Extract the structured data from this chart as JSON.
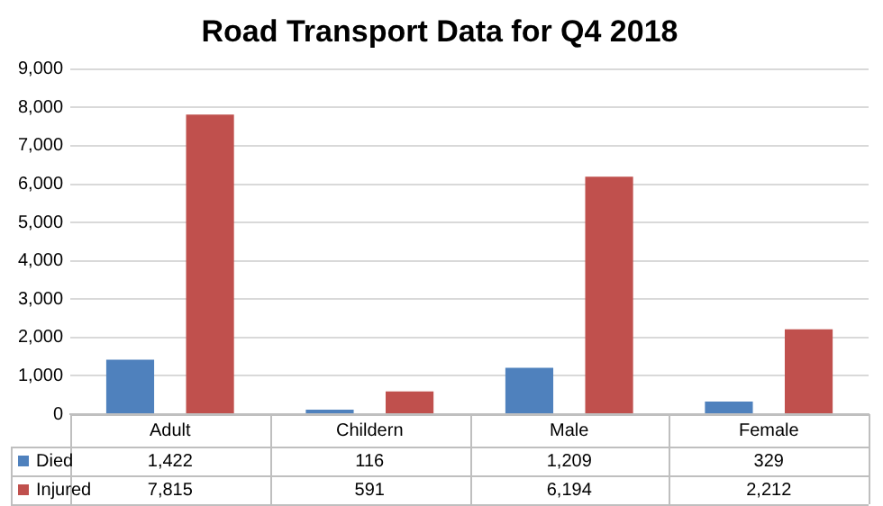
{
  "chart_data": {
    "type": "bar",
    "title": "Road Transport Data for Q4 2018",
    "categories": [
      "Adult",
      "Childern",
      "Male",
      "Female"
    ],
    "series": [
      {
        "name": "Died",
        "color": "#4f81bd",
        "values": [
          1422,
          116,
          1209,
          329
        ],
        "value_labels": [
          "1,422",
          "116",
          "1,209",
          "329"
        ]
      },
      {
        "name": "Injured",
        "color": "#c0504d",
        "values": [
          7815,
          591,
          6194,
          2212
        ],
        "value_labels": [
          "7,815",
          "591",
          "6,194",
          "2,212"
        ]
      }
    ],
    "ylim": [
      0,
      9000
    ],
    "yticks": [
      {
        "value": 0,
        "label": "0"
      },
      {
        "value": 1000,
        "label": "1,000"
      },
      {
        "value": 2000,
        "label": "2,000"
      },
      {
        "value": 3000,
        "label": "3,000"
      },
      {
        "value": 4000,
        "label": "4,000"
      },
      {
        "value": 5000,
        "label": "5,000"
      },
      {
        "value": 6000,
        "label": "6,000"
      },
      {
        "value": 7000,
        "label": "7,000"
      },
      {
        "value": 8000,
        "label": "8,000"
      },
      {
        "value": 9000,
        "label": "9,000"
      }
    ],
    "grid": "y",
    "legend": "bottom"
  }
}
